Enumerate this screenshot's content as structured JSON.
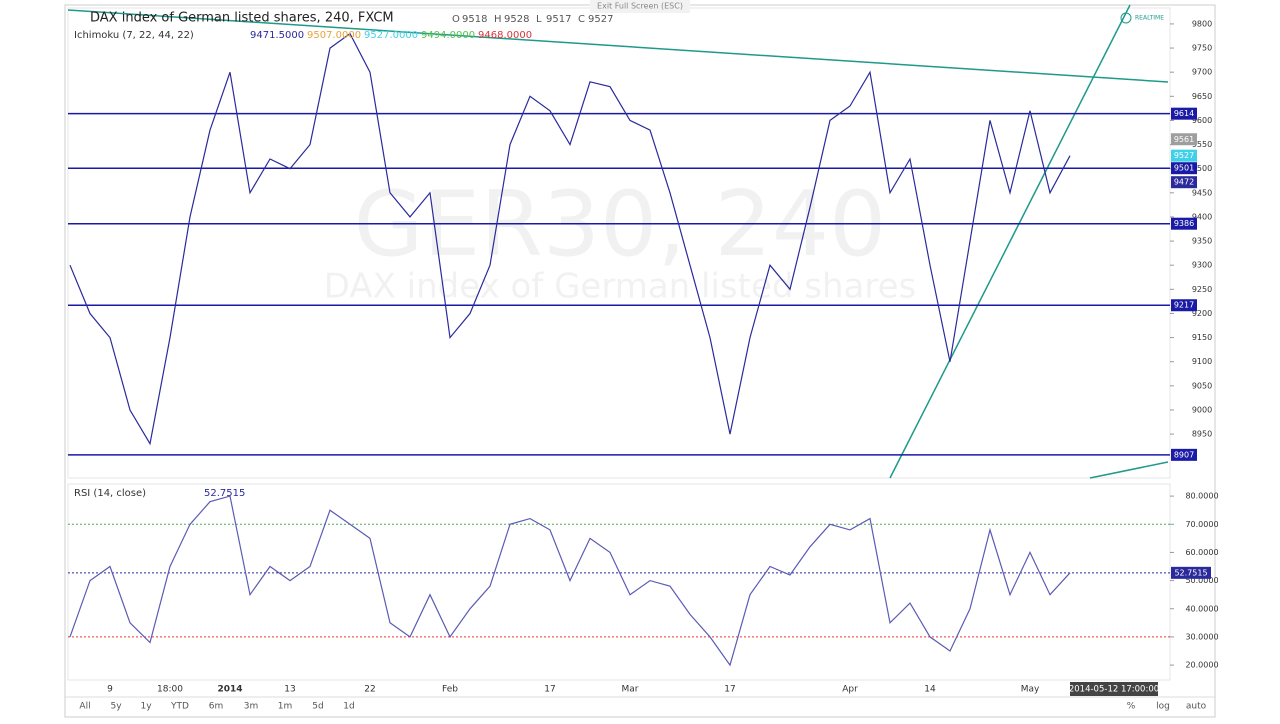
{
  "ui": {
    "exit_fullscreen": "Exit Full Screen (ESC)",
    "realtime": "REALTIME",
    "watermark": "GER30, 240",
    "watermark_sub": "DAX index of German listed shares",
    "timestamp": "2014-05-12 17:00:00",
    "ranges": [
      "All",
      "5y",
      "1y",
      "YTD",
      "6m",
      "3m",
      "1m",
      "5d",
      "1d"
    ],
    "right_buttons": [
      "%",
      "log",
      "auto"
    ]
  },
  "chart_data": [
    {
      "type": "line",
      "title": "DAX index of German listed shares, 240, FXCM",
      "ohlc": [
        {
          "key": "O",
          "value": 9518
        },
        {
          "key": "H",
          "value": 9528
        },
        {
          "key": "L",
          "value": 9517
        },
        {
          "key": "C",
          "value": 9527
        }
      ],
      "indicator": "Ichimoku (7, 22, 44, 22)",
      "indicator_values": [
        {
          "value": 9471.5,
          "label": "9471.5000",
          "color": "#2a2a9c"
        },
        {
          "value": 9507,
          "label": "9507.0000",
          "color": "#e8a33c"
        },
        {
          "value": 9527,
          "label": "9527.0000",
          "color": "#40d0e8"
        },
        {
          "value": 9494,
          "label": "9494.0000",
          "color": "#55c24d"
        },
        {
          "value": 9468,
          "label": "9468.0000",
          "color": "#d9343a"
        }
      ],
      "categories": [
        null,
        null,
        "9",
        null,
        null,
        "18:00",
        null,
        null,
        "2014",
        null,
        null,
        "13",
        null,
        null,
        null,
        "22",
        null,
        null,
        null,
        "Feb",
        null,
        null,
        null,
        null,
        "17",
        null,
        null,
        null,
        "Mar",
        null,
        null,
        null,
        null,
        "17",
        null,
        null,
        null,
        null,
        null,
        "Apr",
        null,
        null,
        null,
        "14",
        null,
        null,
        null,
        null,
        "May",
        null,
        null
      ],
      "series": [
        {
          "color": "#2a2a9c",
          "values": [
            9300,
            9200,
            9150,
            9000,
            8930,
            9150,
            9400,
            9580,
            9700,
            9450,
            9520,
            9500,
            9550,
            9750,
            9780,
            9700,
            9450,
            9400,
            9450,
            9150,
            9200,
            9300,
            9550,
            9650,
            9620,
            9550,
            9680,
            9670,
            9600,
            9580,
            9450,
            9300,
            9150,
            8950,
            9150,
            9300,
            9250,
            9420,
            9600,
            9630,
            9700,
            9450,
            9520,
            9300,
            9100,
            9350,
            9600,
            9450,
            9620,
            9450,
            9527
          ]
        }
      ],
      "levels": [
        9614,
        9501,
        9386,
        9217,
        8907
      ],
      "level_color": "#1a1aa6",
      "price_labels": [
        {
          "value": 9561,
          "color": "#9e9e9e"
        },
        {
          "value": 9527,
          "color": "#40d0e8"
        },
        {
          "value": 9472,
          "color": "#2a2a9c"
        }
      ],
      "ylim": [
        8859,
        9833
      ],
      "yticks": [
        8950,
        9000,
        9050,
        9100,
        9150,
        9200,
        9250,
        9300,
        9350,
        9400,
        9450,
        9500,
        9550,
        9600,
        9650,
        9700,
        9750,
        9800
      ]
    },
    {
      "type": "line",
      "title": "RSI (14, close)",
      "last": 52.7515,
      "series": [
        {
          "color": "#5b5bb5",
          "values": [
            30,
            50,
            55,
            35,
            28,
            55,
            70,
            78,
            80,
            45,
            55,
            50,
            55,
            75,
            70,
            65,
            35,
            30,
            45,
            30,
            40,
            48,
            70,
            72,
            68,
            50,
            65,
            60,
            45,
            50,
            48,
            38,
            30,
            20,
            45,
            55,
            52,
            62,
            70,
            68,
            72,
            35,
            42,
            30,
            25,
            40,
            68,
            45,
            60,
            45,
            52.7515
          ]
        }
      ],
      "bands": [
        {
          "value": 70,
          "color": "#4caf50"
        },
        {
          "value": 30,
          "color": "#e53935"
        }
      ],
      "ylim": [
        14.7,
        84.3
      ],
      "yticks": [
        {
          "value": 20,
          "label": "20.0000"
        },
        {
          "value": 30,
          "label": "30.0000"
        },
        {
          "value": 40,
          "label": "40.0000"
        },
        {
          "value": 50,
          "label": "50.0000"
        },
        {
          "value": 60,
          "label": "60.0000"
        },
        {
          "value": 70,
          "label": "70.0000"
        },
        {
          "value": 80,
          "label": "80.0000"
        }
      ]
    }
  ]
}
